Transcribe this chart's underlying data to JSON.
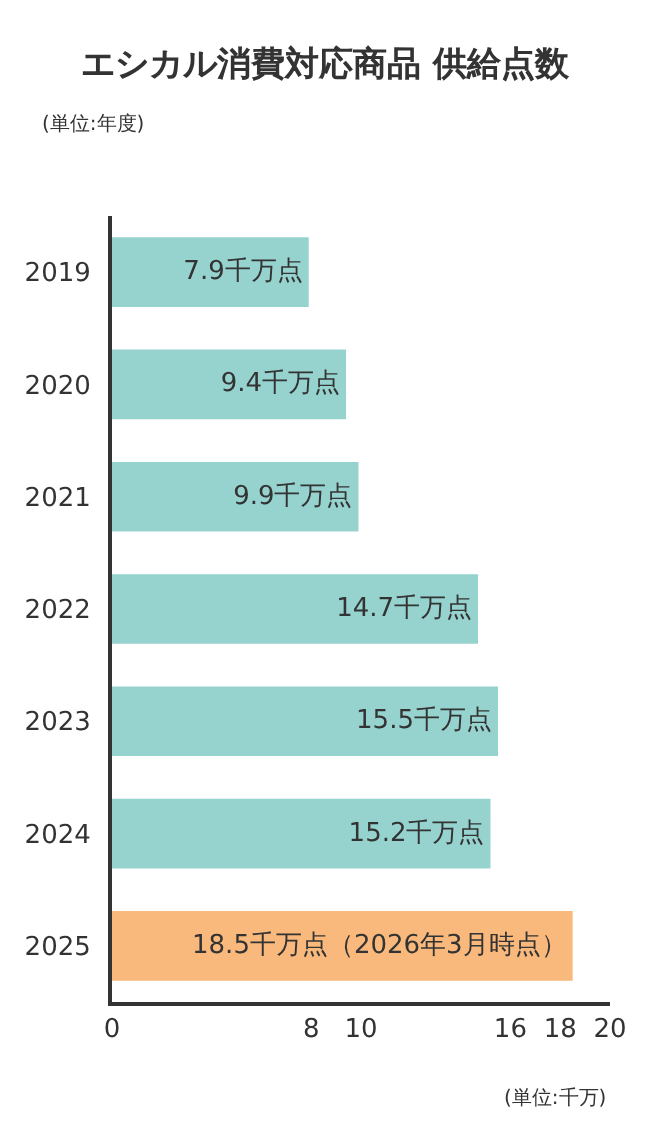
{
  "chart_data": {
    "type": "bar",
    "orientation": "horizontal",
    "title": "エシカル消費対応商品 供給点数",
    "ylabel": "(単位:年度)",
    "xlabel": "(単位:千万)",
    "categories": [
      "2019",
      "2020",
      "2021",
      "2022",
      "2023",
      "2024",
      "2025"
    ],
    "values": [
      7.9,
      9.4,
      9.9,
      14.7,
      15.5,
      15.2,
      18.5
    ],
    "colors": [
      "#96d3cf",
      "#96d3cf",
      "#96d3cf",
      "#96d3cf",
      "#96d3cf",
      "#96d3cf",
      "#f9b97c"
    ],
    "value_labels": [
      "7.9千万点",
      "9.4千万点",
      "9.9千万点",
      "14.7千万点",
      "15.5千万点",
      "15.2千万点",
      "18.5千万点（2026年3月時点）"
    ],
    "xlim": [
      0,
      20
    ],
    "xticks": [
      0,
      8,
      10,
      16,
      18,
      20
    ],
    "grid": false,
    "legend": false
  }
}
